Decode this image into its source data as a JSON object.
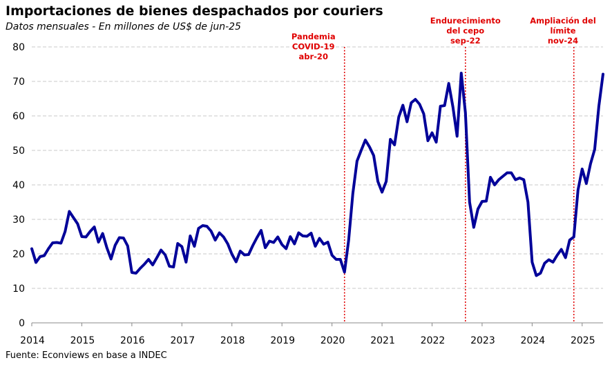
{
  "title": "Importaciones de bienes despachados por couriers",
  "subtitle": "Datos mensuales - En millones de US$ de jun-25",
  "source": "Fuente: Econviews en base a INDEC",
  "colors": {
    "series": "#000099",
    "annotation": "#e00000",
    "grid": "#c8c8c8"
  },
  "chart_data": {
    "type": "line",
    "title": "Importaciones de bienes despachados por couriers",
    "subtitle": "Datos mensuales - En millones de US$ de jun-25",
    "xlabel": "",
    "ylabel": "",
    "ylim": [
      0,
      80
    ],
    "yticks": [
      0,
      10,
      20,
      30,
      40,
      50,
      60,
      70,
      80
    ],
    "xticks": [
      "2014",
      "2015",
      "2016",
      "2017",
      "2018",
      "2019",
      "2020",
      "2021",
      "2022",
      "2023",
      "2024",
      "2025"
    ],
    "grid": true,
    "legend": "none",
    "x_start": "2014-01",
    "x_end": "2025-06",
    "series": [
      {
        "values": [
          21.5,
          17.5,
          19.2,
          19.5,
          21.5,
          23.2,
          23.3,
          23.1,
          26.5,
          32.3,
          30.5,
          28.7,
          25.0,
          24.9,
          26.5,
          27.8,
          23.4,
          25.9,
          21.8,
          18.5,
          22.5,
          24.7,
          24.6,
          22.3,
          14.6,
          14.4,
          15.8,
          17.0,
          18.4,
          16.8,
          18.9,
          21.1,
          19.7,
          16.4,
          16.2,
          23.0,
          22.1,
          17.6,
          25.2,
          22.2,
          27.4,
          28.2,
          28.0,
          26.6,
          24.0,
          26.1,
          24.9,
          22.9,
          19.9,
          17.7,
          20.8,
          19.7,
          19.8,
          22.4,
          24.7,
          26.8,
          21.8,
          23.7,
          23.3,
          24.9,
          22.7,
          21.5,
          25.0,
          22.9,
          26.1,
          25.2,
          25.1,
          26.0,
          22.2,
          24.5,
          22.8,
          23.4,
          19.6,
          18.4,
          18.4,
          14.7,
          24.0,
          37.5,
          46.9,
          50.0,
          53.0,
          51.0,
          48.5,
          41.0,
          37.9,
          41.0,
          53.2,
          51.6,
          59.6,
          63.1,
          58.3,
          63.8,
          64.8,
          63.4,
          60.6,
          52.8,
          55.1,
          52.4,
          62.8,
          63.0,
          69.4,
          62.6,
          54.1,
          72.4,
          60.9,
          35.0,
          27.7,
          33.0,
          35.2,
          35.3,
          42.2,
          40.0,
          41.5,
          42.5,
          43.5,
          43.5,
          41.5,
          42.0,
          41.5,
          35.0,
          17.6,
          13.7,
          14.4,
          17.3,
          18.3,
          17.6,
          19.6,
          21.3,
          18.9,
          24.0,
          24.9,
          38.5,
          44.6,
          40.4,
          46.1,
          50.3,
          62.8,
          72.1
        ]
      }
    ],
    "annotations": [
      {
        "date": "2020-04",
        "lines": [
          "Pandemia",
          "COVID-19",
          "abr-20"
        ]
      },
      {
        "date": "2022-09",
        "lines": [
          "Endurecimiento",
          "del cepo",
          "sep-22"
        ]
      },
      {
        "date": "2024-11",
        "lines": [
          "Ampliación del",
          "límite",
          "nov-24"
        ]
      }
    ]
  }
}
